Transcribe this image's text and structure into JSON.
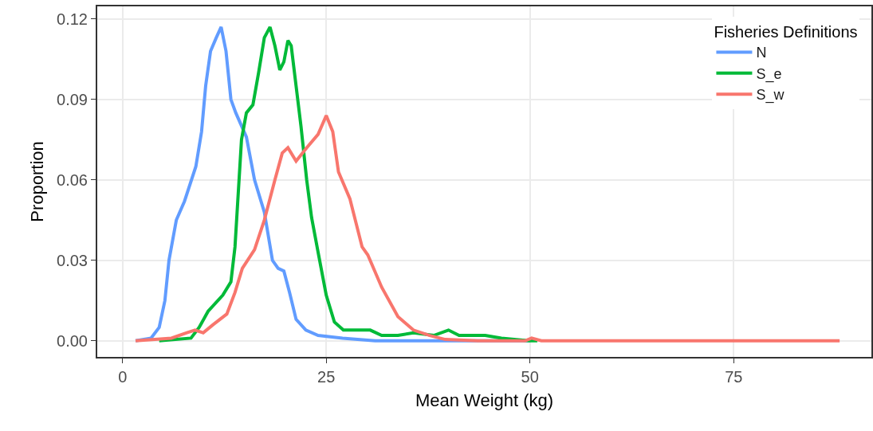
{
  "chart_data": {
    "type": "line",
    "xlabel": "Mean Weight (kg)",
    "ylabel": "Proportion",
    "legend_title": "Fisheries Definitions",
    "legend": "top right",
    "grid": true,
    "marker": "none",
    "line_style": "solid",
    "xlim": [
      -3.1,
      91.9
    ],
    "xticks": [
      0,
      25,
      50,
      75
    ],
    "ylim": [
      -0.006,
      0.1247
    ],
    "yticks": [
      {
        "value": 0,
        "label": "0.00"
      },
      {
        "value": 0.03,
        "label": "0.03"
      },
      {
        "value": 0.06,
        "label": "0.06"
      },
      {
        "value": 0.09,
        "label": "0.09"
      },
      {
        "value": 0.12,
        "label": "0.12"
      }
    ],
    "series": [
      {
        "name": "N",
        "color": "#619cff",
        "x": [
          1.6,
          3.5,
          4.5,
          5.2,
          5.7,
          6.6,
          7.6,
          9.0,
          9.7,
          10.2,
          10.8,
          11.5,
          12.1,
          12.7,
          13.3,
          13.9,
          15.2,
          16.2,
          17.4,
          18.4,
          19.1,
          19.8,
          20.5,
          21.3,
          22.5,
          24,
          27,
          31,
          40,
          50
        ],
        "values": [
          0,
          0.001,
          0.005,
          0.015,
          0.03,
          0.045,
          0.052,
          0.065,
          0.078,
          0.095,
          0.108,
          0.113,
          0.117,
          0.108,
          0.09,
          0.085,
          0.076,
          0.06,
          0.048,
          0.03,
          0.027,
          0.026,
          0.018,
          0.008,
          0.004,
          0.002,
          0.001,
          0,
          0,
          0
        ]
      },
      {
        "name": "S_e",
        "color": "#00ba38",
        "x": [
          4.5,
          8.4,
          9.4,
          10.5,
          12.3,
          13.3,
          13.8,
          14.3,
          14.6,
          15.2,
          16.0,
          16.7,
          17.4,
          18.1,
          18.7,
          19.3,
          19.8,
          20.3,
          20.7,
          21.3,
          21.9,
          22.6,
          23.2,
          24.0,
          25.0,
          26.0,
          27.1,
          30.4,
          31.8,
          33.8,
          35.7,
          38.2,
          40,
          41.3,
          44.5,
          46.5,
          49.9,
          50.9
        ],
        "values": [
          0,
          0.001,
          0.005,
          0.011,
          0.017,
          0.022,
          0.035,
          0.06,
          0.075,
          0.085,
          0.088,
          0.1,
          0.113,
          0.117,
          0.11,
          0.101,
          0.104,
          0.112,
          0.11,
          0.095,
          0.08,
          0.06,
          0.046,
          0.033,
          0.017,
          0.007,
          0.004,
          0.004,
          0.002,
          0.002,
          0.003,
          0.002,
          0.004,
          0.002,
          0.002,
          0.001,
          0,
          0
        ]
      },
      {
        "name": "S_w",
        "color": "#f8766d",
        "x": [
          1.6,
          6,
          7.9,
          8.9,
          9.9,
          11.1,
          12.8,
          13.8,
          14.7,
          16.2,
          17.4,
          18.7,
          19.6,
          20.3,
          21.3,
          22.6,
          24,
          25,
          25.8,
          26.5,
          27.9,
          29.4,
          30.1,
          31.8,
          33.8,
          35.7,
          37.7,
          39.6,
          43.6,
          49.4,
          50.2,
          51.4,
          88
        ],
        "values": [
          0,
          0.001,
          0.003,
          0.004,
          0.003,
          0.006,
          0.01,
          0.018,
          0.027,
          0.034,
          0.045,
          0.06,
          0.07,
          0.072,
          0.067,
          0.072,
          0.077,
          0.084,
          0.078,
          0.063,
          0.053,
          0.035,
          0.032,
          0.02,
          0.009,
          0.004,
          0.002,
          0.0005,
          0,
          0,
          0.001,
          0,
          0
        ]
      }
    ]
  }
}
